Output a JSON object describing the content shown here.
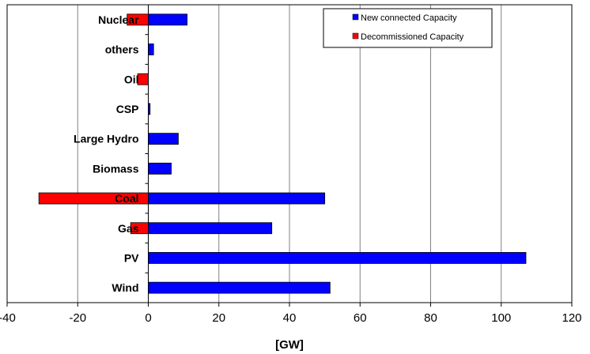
{
  "chart_data": {
    "type": "bar",
    "orientation": "horizontal",
    "title": "",
    "xlabel": "[GW]",
    "ylabel": "",
    "xlim": [
      -40,
      120
    ],
    "xticks": [
      -40,
      -20,
      0,
      20,
      40,
      60,
      80,
      100,
      120
    ],
    "grid": true,
    "legend_position": "top-right",
    "categories": [
      "Nuclear",
      "others",
      "Oil",
      "CSP",
      "Large Hydro",
      "Biomass",
      "Coal",
      "Gas",
      "PV",
      "Wind"
    ],
    "series": [
      {
        "name": "New connected Capacity",
        "color": "#0000ff",
        "values": [
          11,
          1.5,
          0,
          0.5,
          8.5,
          6.5,
          50,
          35,
          107,
          51.5
        ]
      },
      {
        "name": "Decommissioned Capacity",
        "color": "#ff0000",
        "values": [
          -6,
          0,
          -3,
          0,
          0,
          0,
          -31,
          -5,
          0,
          0
        ]
      }
    ]
  }
}
